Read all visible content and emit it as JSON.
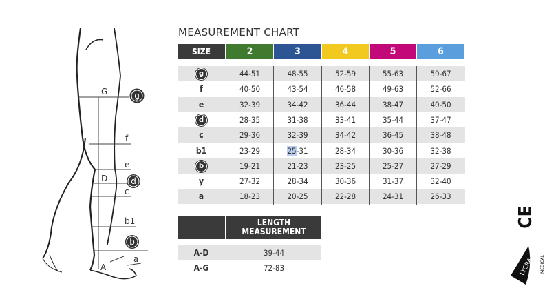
{
  "title": "MEASUREMENT CHART",
  "size_table": {
    "header_label": "SIZE",
    "sizes": [
      {
        "label": "2",
        "color": "#3f7a2e"
      },
      {
        "label": "3",
        "color": "#2e5593"
      },
      {
        "label": "4",
        "color": "#f2c91f"
      },
      {
        "label": "5",
        "color": "#c3087a"
      },
      {
        "label": "6",
        "color": "#5a9ede"
      }
    ],
    "rows": [
      {
        "label": "g",
        "circled": true,
        "values": [
          "44-51",
          "48-55",
          "52-59",
          "55-63",
          "59-67"
        ]
      },
      {
        "label": "f",
        "circled": false,
        "values": [
          "40-50",
          "43-54",
          "46-58",
          "49-63",
          "52-66"
        ]
      },
      {
        "label": "e",
        "circled": false,
        "values": [
          "32-39",
          "34-42",
          "36-44",
          "38-47",
          "40-50"
        ]
      },
      {
        "label": "d",
        "circled": true,
        "values": [
          "28-35",
          "31-38",
          "33-41",
          "35-44",
          "37-47"
        ]
      },
      {
        "label": "c",
        "circled": false,
        "values": [
          "29-36",
          "32-39",
          "34-42",
          "36-45",
          "38-48"
        ]
      },
      {
        "label": "b1",
        "circled": false,
        "values": [
          "23-29",
          "25-31",
          "28-34",
          "30-36",
          "32-38"
        ]
      },
      {
        "label": "b",
        "circled": true,
        "values": [
          "19-21",
          "21-23",
          "23-25",
          "25-27",
          "27-29"
        ]
      },
      {
        "label": "y",
        "circled": false,
        "values": [
          "27-32",
          "28-34",
          "30-36",
          "31-37",
          "32-40"
        ]
      },
      {
        "label": "a",
        "circled": false,
        "values": [
          "18-23",
          "20-25",
          "22-28",
          "24-31",
          "26-33"
        ]
      }
    ]
  },
  "length_table": {
    "header_line1": "LENGTH",
    "header_line2": "MEASUREMENT",
    "rows": [
      {
        "label": "A-D",
        "value": "39-44"
      },
      {
        "label": "A-G",
        "value": "72-83"
      }
    ]
  },
  "diagram_labels": {
    "G": "G",
    "g": "g",
    "f": "f",
    "e": "e",
    "D": "D",
    "d": "d",
    "c": "c",
    "b1": "b1",
    "b": "b",
    "A": "A",
    "a": "a"
  },
  "logos": {
    "ce": "CE",
    "lycra": "LYCRA",
    "medical": "MEDICAL"
  }
}
